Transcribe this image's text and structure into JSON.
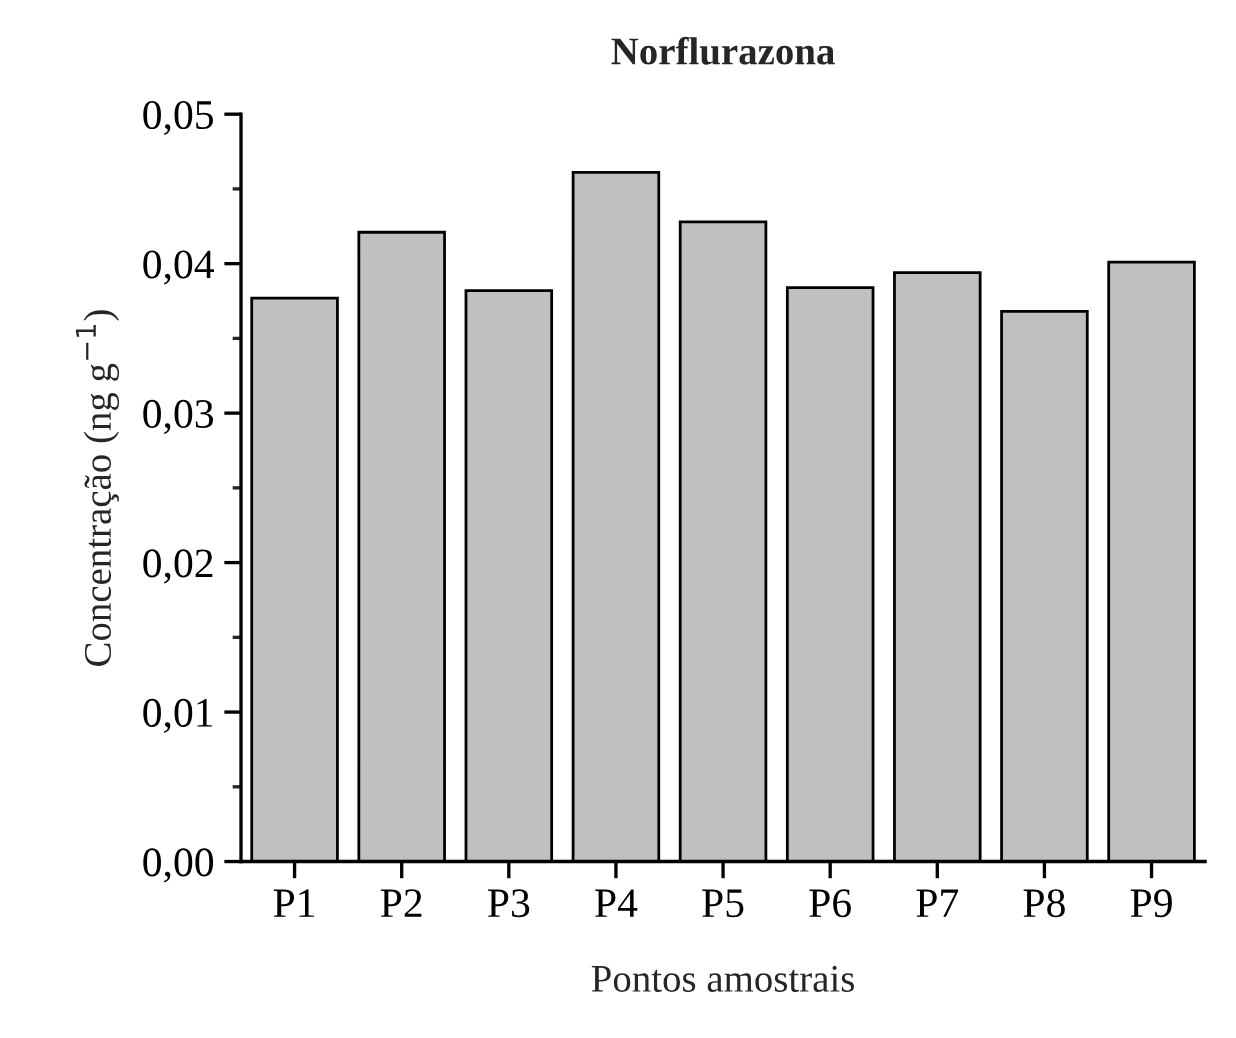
{
  "chart_data": {
    "type": "bar",
    "title": "Norflurazona",
    "xlabel": "Pontos amostrais",
    "ylabel": "Concentração (ng g$^{−1}$)",
    "categories": [
      "P1",
      "P2",
      "P3",
      "P4",
      "P5",
      "P6",
      "P7",
      "P8",
      "P9"
    ],
    "values": [
      0.0377,
      0.0421,
      0.0382,
      0.0461,
      0.0428,
      0.0384,
      0.0394,
      0.0368,
      0.0401
    ],
    "color": "#c0c0c0",
    "ylim": [
      0,
      0.05
    ],
    "yticks": [
      {
        "value": 0,
        "label": "0,00"
      },
      {
        "value": 0.01,
        "label": "0,01"
      },
      {
        "value": 0.02,
        "label": "0,02"
      },
      {
        "value": 0.03,
        "label": "0,03"
      },
      {
        "value": 0.04,
        "label": "0,04"
      },
      {
        "value": 0.05,
        "label": "0,05"
      }
    ],
    "grid": false
  }
}
